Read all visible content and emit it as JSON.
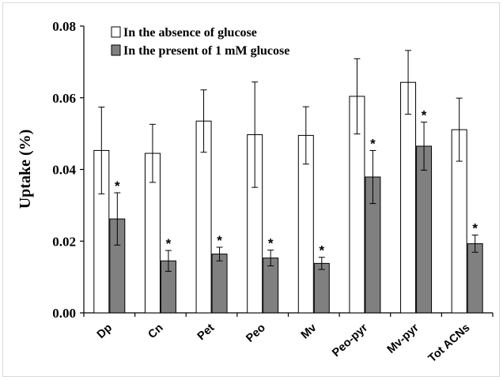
{
  "chart_data": {
    "type": "bar",
    "title": "",
    "xlabel": "",
    "ylabel": "Uptake (%)",
    "ylim": [
      0,
      0.08
    ],
    "yticks": [
      "0.00",
      "0.02",
      "0.04",
      "0.06",
      "0.08"
    ],
    "grid": false,
    "legend_position": "top-left",
    "categories": [
      "Dp",
      "Cn",
      "Pet",
      "Peo",
      "Mv",
      "Peo-pyr",
      "Mv-pyr",
      "Tot ACNs"
    ],
    "series": [
      {
        "name": "In the absence of glucose",
        "color": "#ffffff",
        "values": [
          0.0453,
          0.0445,
          0.0535,
          0.0497,
          0.0495,
          0.0604,
          0.0643,
          0.0511
        ],
        "errors": [
          0.0121,
          0.0081,
          0.0087,
          0.0147,
          0.008,
          0.0105,
          0.0089,
          0.0088
        ],
        "significance": [
          "",
          "",
          "",
          "",
          "",
          "",
          "",
          ""
        ]
      },
      {
        "name": "In the present of 1 mM glucose",
        "color": "#808080",
        "values": [
          0.0262,
          0.0145,
          0.0164,
          0.0153,
          0.0138,
          0.0379,
          0.0465,
          0.0193
        ],
        "errors": [
          0.0073,
          0.0029,
          0.0019,
          0.0022,
          0.0017,
          0.0074,
          0.0067,
          0.0024
        ],
        "significance": [
          "*",
          "*",
          "*",
          "*",
          "*",
          "*",
          "*",
          "*"
        ]
      }
    ]
  }
}
